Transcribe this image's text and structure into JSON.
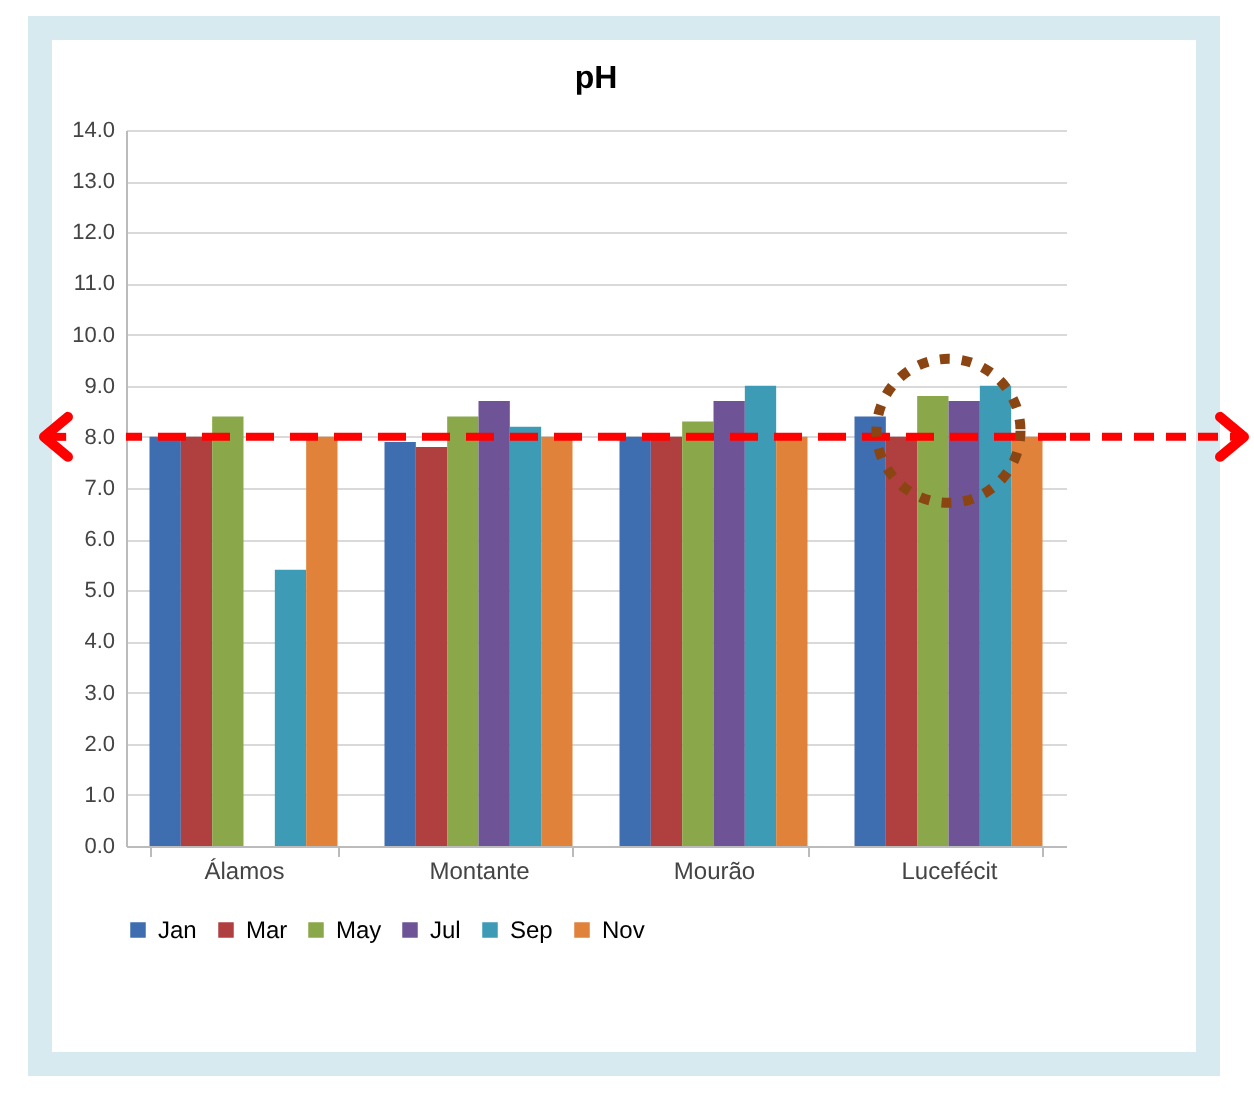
{
  "chart_data": {
    "type": "bar",
    "title": "pH",
    "categories": [
      "Álamos",
      "Montante",
      "Mourão",
      "Lucefécit"
    ],
    "series": [
      {
        "name": "Jan",
        "color": "#3e6db0",
        "values": [
          8.0,
          7.9,
          8.0,
          8.4
        ]
      },
      {
        "name": "Mar",
        "color": "#b0403f",
        "values": [
          8.0,
          7.8,
          8.0,
          8.0
        ]
      },
      {
        "name": "May",
        "color": "#8aa84a",
        "values": [
          8.4,
          8.4,
          8.3,
          8.8
        ]
      },
      {
        "name": "Jul",
        "color": "#6e5496",
        "values": [
          null,
          8.7,
          8.7,
          8.7
        ]
      },
      {
        "name": "Sep",
        "color": "#3d9bb5",
        "values": [
          5.4,
          8.2,
          9.0,
          9.0
        ]
      },
      {
        "name": "Nov",
        "color": "#e0823a",
        "values": [
          8.0,
          8.0,
          8.0,
          8.0
        ]
      }
    ],
    "ylim": [
      0,
      14
    ],
    "yticks": [
      {
        "value": 0,
        "label": "0.0"
      },
      {
        "value": 1,
        "label": "1.0"
      },
      {
        "value": 2,
        "label": "2.0"
      },
      {
        "value": 3,
        "label": "3.0"
      },
      {
        "value": 4,
        "label": "4.0"
      },
      {
        "value": 5,
        "label": "5.0"
      },
      {
        "value": 6,
        "label": "6.0"
      },
      {
        "value": 7,
        "label": "7.0"
      },
      {
        "value": 8,
        "label": "8.0"
      },
      {
        "value": 9,
        "label": "9.0"
      },
      {
        "value": 10,
        "label": "10.0"
      },
      {
        "value": 11,
        "label": "11.0"
      },
      {
        "value": 12,
        "label": "12.0"
      },
      {
        "value": 13,
        "label": "13.0"
      },
      {
        "value": 14,
        "label": "14.0"
      }
    ],
    "grid": "y",
    "legend": "bottom",
    "ref_lines": [
      {
        "axis": "y",
        "value": 8,
        "color": "#ff0000",
        "line_style": "dashed"
      }
    ]
  }
}
